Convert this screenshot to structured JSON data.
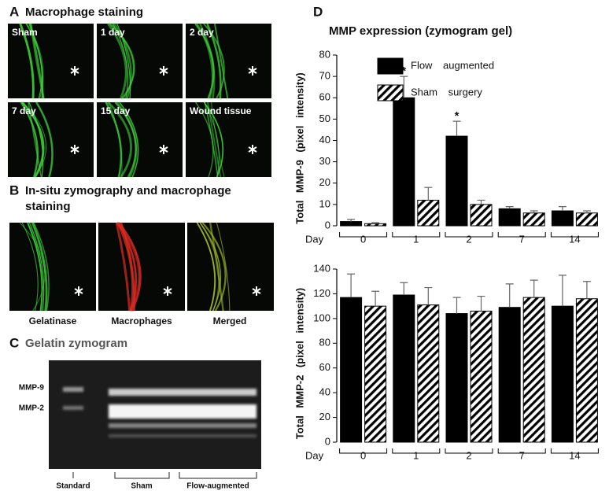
{
  "panels": {
    "A": {
      "label": "A",
      "title": "Macrophage staining",
      "tiles": [
        "Sham",
        "1 day",
        "2 day",
        "7 day",
        "15 day",
        "Wound tissue"
      ]
    },
    "B": {
      "label": "B",
      "title": [
        "In-situ zymography and macrophage",
        "staining"
      ],
      "captions": [
        "Gelatinase",
        "Macrophages",
        "Merged"
      ]
    },
    "C": {
      "label": "C",
      "title": "Gelatin zymogram",
      "bands": [
        "MMP-9",
        "MMP-2"
      ],
      "lanes": [
        "Standard",
        "Sham",
        "Flow-augmented"
      ]
    },
    "D": {
      "label": "D",
      "title": "MMP expression (zymogram gel)"
    }
  },
  "chart_data": [
    {
      "type": "bar",
      "ylabel": "Total MMP-9 (pixel intensity)",
      "xlabel": "Day",
      "categories": [
        "0",
        "1",
        "2",
        "7",
        "14"
      ],
      "series": [
        {
          "name": "Flow augmented",
          "color": "#000000",
          "hatch": false,
          "values": [
            2,
            60,
            42,
            8,
            7
          ],
          "errors": [
            1,
            10,
            7,
            1,
            2
          ]
        },
        {
          "name": "Sham surgery",
          "color": "#000000",
          "hatch": true,
          "values": [
            1,
            12,
            10,
            6,
            6
          ],
          "errors": [
            0.5,
            6,
            2,
            1,
            1
          ]
        }
      ],
      "annotations": [
        {
          "text": "*",
          "category": "1"
        },
        {
          "text": "*",
          "category": "2"
        }
      ],
      "ylim": [
        0,
        80
      ],
      "yticks": [
        0,
        10,
        20,
        30,
        40,
        50,
        60,
        70,
        80
      ],
      "legend": "upper right"
    },
    {
      "type": "bar",
      "ylabel": "Total MMP-2 (pixel intensity)",
      "xlabel": "Day",
      "categories": [
        "0",
        "1",
        "2",
        "7",
        "14"
      ],
      "series": [
        {
          "color": "#000000",
          "hatch": false,
          "values": [
            117,
            119,
            104,
            109,
            110
          ],
          "errors": [
            19,
            10,
            13,
            19,
            25
          ]
        },
        {
          "color": "#000000",
          "hatch": true,
          "values": [
            110,
            111,
            106,
            117,
            116
          ],
          "errors": [
            12,
            14,
            12,
            14,
            14
          ]
        }
      ],
      "ylim": [
        0,
        140
      ],
      "yticks": [
        0,
        20,
        40,
        60,
        80,
        100,
        120,
        140
      ],
      "legend": false
    }
  ]
}
